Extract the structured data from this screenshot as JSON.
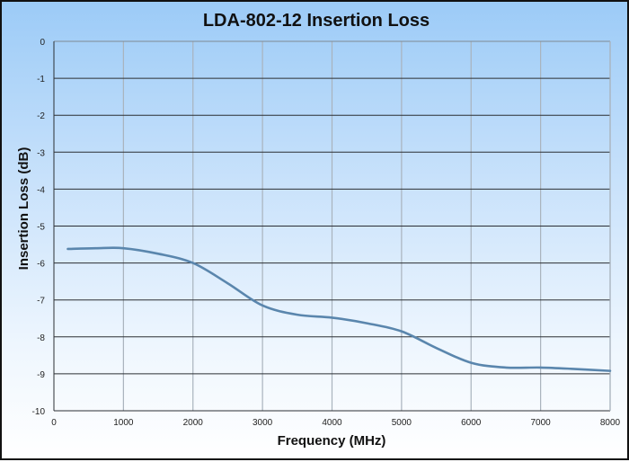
{
  "chart_data": {
    "type": "line",
    "title": "LDA-802-12 Insertion Loss",
    "xlabel": "Frequency (MHz)",
    "ylabel": "Insertion Loss (dB)",
    "xlim": [
      0,
      8000
    ],
    "ylim": [
      -10,
      0
    ],
    "xticks": [
      0,
      1000,
      2000,
      3000,
      4000,
      5000,
      6000,
      7000,
      8000
    ],
    "yticks": [
      0,
      -1,
      -2,
      -3,
      -4,
      -5,
      -6,
      -7,
      -8,
      -9,
      -10
    ],
    "grid": true,
    "legend": "none",
    "series": [
      {
        "name": "Insertion Loss",
        "color": "#5a86ad",
        "x": [
          200,
          600,
          1000,
          1500,
          2000,
          2500,
          3000,
          3500,
          4000,
          4500,
          5000,
          5500,
          6000,
          6500,
          7000,
          7500,
          8000
        ],
        "y": [
          -5.62,
          -5.6,
          -5.6,
          -5.75,
          -6.0,
          -6.55,
          -7.15,
          -7.4,
          -7.48,
          -7.63,
          -7.85,
          -8.3,
          -8.7,
          -8.83,
          -8.83,
          -8.87,
          -8.92
        ]
      }
    ]
  }
}
